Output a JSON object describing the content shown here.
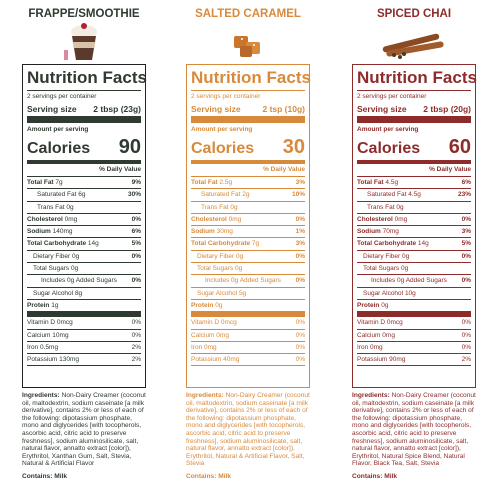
{
  "panels": [
    {
      "title": "FRAPPE/SMOOTHIE",
      "color": "#2f3a30",
      "heading": "Nutrition Facts",
      "servings": "2 servings per container",
      "serving_label": "Serving size",
      "serving_size": "2 tbsp (23g)",
      "amount_per": "Amount per serving",
      "calories_label": "Calories",
      "calories": "90",
      "dv_header": "% Daily Value",
      "rows": [
        {
          "label": "Total Fat",
          "amount": "7g",
          "dv": "9%"
        },
        {
          "label": "Saturated Fat",
          "amount": "6g",
          "dv": "30%"
        },
        {
          "label": "Trans Fat",
          "amount": "0g"
        },
        {
          "label": "Cholesterol",
          "amount": "0mg",
          "dv": "0%"
        },
        {
          "label": "Sodium",
          "amount": "140mg",
          "dv": "6%"
        },
        {
          "label": "Total Carbohydrate",
          "amount": "14g",
          "dv": "5%"
        },
        {
          "label": "Dietary Fiber",
          "amount": "0g",
          "dv": "0%"
        },
        {
          "label": "Total Sugars",
          "amount": "0g"
        },
        {
          "label": "Includes 0g Added Sugars",
          "dv": "0%"
        },
        {
          "label": "Sugar Alcohol",
          "amount": "8g"
        },
        {
          "label": "Protein",
          "amount": "1g"
        }
      ],
      "vitamins": [
        {
          "label": "Vitamin D",
          "amount": "0mcg",
          "dv": "0%"
        },
        {
          "label": "Calcium",
          "amount": "10mg",
          "dv": "0%"
        },
        {
          "label": "Iron",
          "amount": "0.5mg",
          "dv": "2%"
        },
        {
          "label": "Potassium",
          "amount": "130mg",
          "dv": "2%"
        }
      ],
      "ingredients_label": "Ingredients:",
      "ingredients": "Non-Dairy Creamer (coconut oil, maltodextrin, sodium caseinate [a milk derivative], contains 2% or less of each of the following: dipotassium phosphate, mono and diglycerides [with tocopherols, ascorbic acid, citric acid to preserve freshness], sodium aluminosilicate, salt, natural flavor, annatto extract [color]), Erythritol, Xanthan Gum, Salt, Stevia, Natural & Artificial Flavor",
      "contains": "Contains: Milk"
    },
    {
      "title": "SALTED CARAMEL",
      "color": "#d88a3c",
      "heading": "Nutrition Facts",
      "servings": "2 servings per container",
      "serving_label": "Serving size",
      "serving_size": "2 tsp (10g)",
      "amount_per": "Amount per serving",
      "calories_label": "Calories",
      "calories": "30",
      "dv_header": "% Daily Value",
      "rows": [
        {
          "label": "Total Fat",
          "amount": "2.5g",
          "dv": "3%"
        },
        {
          "label": "Saturated Fat",
          "amount": "2g",
          "dv": "10%"
        },
        {
          "label": "Trans Fat",
          "amount": "0g"
        },
        {
          "label": "Cholesterol",
          "amount": "0mg",
          "dv": "0%"
        },
        {
          "label": "Sodium",
          "amount": "30mg",
          "dv": "1%"
        },
        {
          "label": "Total Carbohydrate",
          "amount": "7g",
          "dv": "3%"
        },
        {
          "label": "Dietary Fiber",
          "amount": "0g",
          "dv": "0%"
        },
        {
          "label": "Total Sugars",
          "amount": "0g"
        },
        {
          "label": "Includes 0g Added Sugars",
          "dv": "0%"
        },
        {
          "label": "Sugar Alcohol",
          "amount": "5g"
        },
        {
          "label": "Protein",
          "amount": "0g"
        }
      ],
      "vitamins": [
        {
          "label": "Vitamin D",
          "amount": "0mcg",
          "dv": "0%"
        },
        {
          "label": "Calcium",
          "amount": "0mg",
          "dv": "0%"
        },
        {
          "label": "Iron",
          "amount": "0mg",
          "dv": "0%"
        },
        {
          "label": "Potassium",
          "amount": "40mg",
          "dv": "0%"
        }
      ],
      "ingredients_label": "Ingredients:",
      "ingredients": "Non-Dairy Creamer (coconut oil, maltodextrin, sodium caseinate [a milk derivative], contains 2% or less of each of the following: dipotassium phosphate, mono and diglycerides [with tocopherols, ascorbic acid, citric acid to preserve freshness], sodium aluminosilicate, salt, natural flavor, annatto extract [color]), Erythritol, Natural & Artificial Flavor, Salt, Stevia",
      "contains": "Contains: Milk"
    },
    {
      "title": "SPICED CHAI",
      "color": "#8e2c2c",
      "heading": "Nutrition Facts",
      "servings": "2 servings per container",
      "serving_label": "Serving size",
      "serving_size": "2 tbsp (20g)",
      "amount_per": "Amount per serving",
      "calories_label": "Calories",
      "calories": "60",
      "dv_header": "% Daily Value",
      "rows": [
        {
          "label": "Total Fat",
          "amount": "4.5g",
          "dv": "6%"
        },
        {
          "label": "Saturated Fat",
          "amount": "4.5g",
          "dv": "23%"
        },
        {
          "label": "Trans Fat",
          "amount": "0g"
        },
        {
          "label": "Cholesterol",
          "amount": "0mg",
          "dv": "0%"
        },
        {
          "label": "Sodium",
          "amount": "70mg",
          "dv": "3%"
        },
        {
          "label": "Total Carbohydrate",
          "amount": "14g",
          "dv": "5%"
        },
        {
          "label": "Dietary Fiber",
          "amount": "0g",
          "dv": "0%"
        },
        {
          "label": "Total Sugars",
          "amount": "0g"
        },
        {
          "label": "Includes 0g Added Sugars",
          "dv": "0%"
        },
        {
          "label": "Sugar Alcohol",
          "amount": "10g"
        },
        {
          "label": "Protein",
          "amount": "0g"
        }
      ],
      "vitamins": [
        {
          "label": "Vitamin D",
          "amount": "0mcg",
          "dv": "0%"
        },
        {
          "label": "Calcium",
          "amount": "0mg",
          "dv": "0%"
        },
        {
          "label": "Iron",
          "amount": "0mg",
          "dv": "0%"
        },
        {
          "label": "Potassium",
          "amount": "90mg",
          "dv": "2%"
        }
      ],
      "ingredients_label": "Ingredients:",
      "ingredients": "Non-Dairy Creamer (coconut oil, maltodextrin, sodium caseinate [a milk derivative], contains 2% or less of each of the following: dipotassium phosphate, mono and diglycerides [with tocopherols, ascorbic acid, citric acid to preserve freshness], sodium aluminosilicate, salt, natural flavor, annatto extract [color]), Erythritol, Natural Spice Blend, Natural Flavor, Black Tea, Salt, Stevia",
      "contains": "Contains: Milk"
    }
  ]
}
